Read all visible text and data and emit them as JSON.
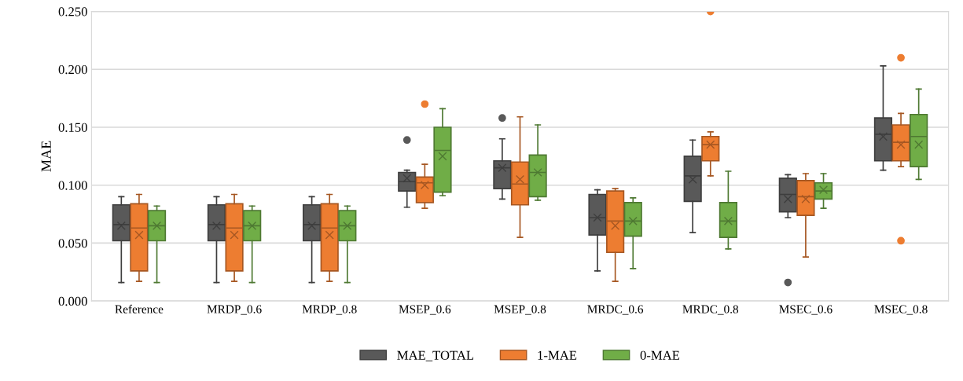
{
  "chart_data": {
    "type": "box",
    "ylabel": "MAE",
    "categories": [
      "Reference",
      "MRDP_0.6",
      "MRDP_0.8",
      "MSEP_0.6",
      "MSEP_0.8",
      "MRDC_0.6",
      "MRDC_0.8",
      "MSEC_0.6",
      "MSEC_0.8"
    ],
    "ylim": [
      0,
      0.25
    ],
    "yticks": [
      {
        "value": 0,
        "label": "0.000"
      },
      {
        "value": 0.05,
        "label": "0.050"
      },
      {
        "value": 0.1,
        "label": "0.100"
      },
      {
        "value": 0.15,
        "label": "0.150"
      },
      {
        "value": 0.2,
        "label": "0.200"
      },
      {
        "value": 0.25,
        "label": "0.250"
      }
    ],
    "grid": "y",
    "legend": "bottom",
    "series": [
      {
        "name": "MAE_TOTAL",
        "color": "#595959",
        "boxes": [
          {
            "low": 0.016,
            "q1": 0.052,
            "median": 0.066,
            "q3": 0.083,
            "high": 0.09,
            "mean": 0.065
          },
          {
            "low": 0.016,
            "q1": 0.052,
            "median": 0.066,
            "q3": 0.083,
            "high": 0.09,
            "mean": 0.065
          },
          {
            "low": 0.016,
            "q1": 0.052,
            "median": 0.066,
            "q3": 0.083,
            "high": 0.09,
            "mean": 0.065
          },
          {
            "low": 0.081,
            "q1": 0.095,
            "median": 0.103,
            "q3": 0.111,
            "high": 0.113,
            "mean": 0.106,
            "outliers": [
              0.139
            ]
          },
          {
            "low": 0.088,
            "q1": 0.097,
            "median": 0.115,
            "q3": 0.121,
            "high": 0.14,
            "mean": 0.115,
            "outliers": [
              0.158
            ]
          },
          {
            "low": 0.026,
            "q1": 0.057,
            "median": 0.072,
            "q3": 0.092,
            "high": 0.096,
            "mean": 0.072
          },
          {
            "low": 0.059,
            "q1": 0.086,
            "median": 0.108,
            "q3": 0.125,
            "high": 0.139,
            "mean": 0.105
          },
          {
            "low": 0.072,
            "q1": 0.077,
            "median": 0.092,
            "q3": 0.106,
            "high": 0.109,
            "mean": 0.088,
            "outliers": [
              0.016
            ]
          },
          {
            "low": 0.113,
            "q1": 0.121,
            "median": 0.144,
            "q3": 0.158,
            "high": 0.203,
            "mean": 0.142
          }
        ]
      },
      {
        "name": "1-MAE",
        "color": "#ed7d31",
        "boxes": [
          {
            "low": 0.017,
            "q1": 0.026,
            "median": 0.063,
            "q3": 0.084,
            "high": 0.092,
            "mean": 0.057
          },
          {
            "low": 0.017,
            "q1": 0.026,
            "median": 0.063,
            "q3": 0.084,
            "high": 0.092,
            "mean": 0.057
          },
          {
            "low": 0.017,
            "q1": 0.026,
            "median": 0.063,
            "q3": 0.084,
            "high": 0.092,
            "mean": 0.057
          },
          {
            "low": 0.08,
            "q1": 0.085,
            "median": 0.102,
            "q3": 0.107,
            "high": 0.118,
            "mean": 0.1,
            "outliers": [
              0.17
            ]
          },
          {
            "low": 0.055,
            "q1": 0.083,
            "median": 0.101,
            "q3": 0.12,
            "high": 0.159,
            "mean": 0.105
          },
          {
            "low": 0.017,
            "q1": 0.042,
            "median": 0.069,
            "q3": 0.095,
            "high": 0.097,
            "mean": 0.065
          },
          {
            "low": 0.108,
            "q1": 0.121,
            "median": 0.135,
            "q3": 0.142,
            "high": 0.146,
            "mean": 0.135,
            "outliers": [
              0.25
            ]
          },
          {
            "low": 0.038,
            "q1": 0.074,
            "median": 0.09,
            "q3": 0.104,
            "high": 0.11,
            "mean": 0.088
          },
          {
            "low": 0.116,
            "q1": 0.121,
            "median": 0.137,
            "q3": 0.152,
            "high": 0.162,
            "mean": 0.135,
            "outliers": [
              0.21,
              0.052
            ]
          }
        ]
      },
      {
        "name": "0-MAE",
        "color": "#70ad47",
        "boxes": [
          {
            "low": 0.016,
            "q1": 0.052,
            "median": 0.065,
            "q3": 0.078,
            "high": 0.082,
            "mean": 0.065
          },
          {
            "low": 0.016,
            "q1": 0.052,
            "median": 0.065,
            "q3": 0.078,
            "high": 0.082,
            "mean": 0.065
          },
          {
            "low": 0.016,
            "q1": 0.052,
            "median": 0.065,
            "q3": 0.078,
            "high": 0.082,
            "mean": 0.065
          },
          {
            "low": 0.091,
            "q1": 0.094,
            "median": 0.13,
            "q3": 0.15,
            "high": 0.166,
            "mean": 0.125
          },
          {
            "low": 0.087,
            "q1": 0.09,
            "median": 0.111,
            "q3": 0.126,
            "high": 0.152,
            "mean": 0.111
          },
          {
            "low": 0.028,
            "q1": 0.056,
            "median": 0.069,
            "q3": 0.085,
            "high": 0.089,
            "mean": 0.069
          },
          {
            "low": 0.045,
            "q1": 0.055,
            "median": 0.069,
            "q3": 0.085,
            "high": 0.112,
            "mean": 0.069
          },
          {
            "low": 0.08,
            "q1": 0.088,
            "median": 0.095,
            "q3": 0.102,
            "high": 0.11,
            "mean": 0.096
          },
          {
            "low": 0.105,
            "q1": 0.116,
            "median": 0.142,
            "q3": 0.161,
            "high": 0.183,
            "mean": 0.135
          }
        ]
      }
    ]
  }
}
